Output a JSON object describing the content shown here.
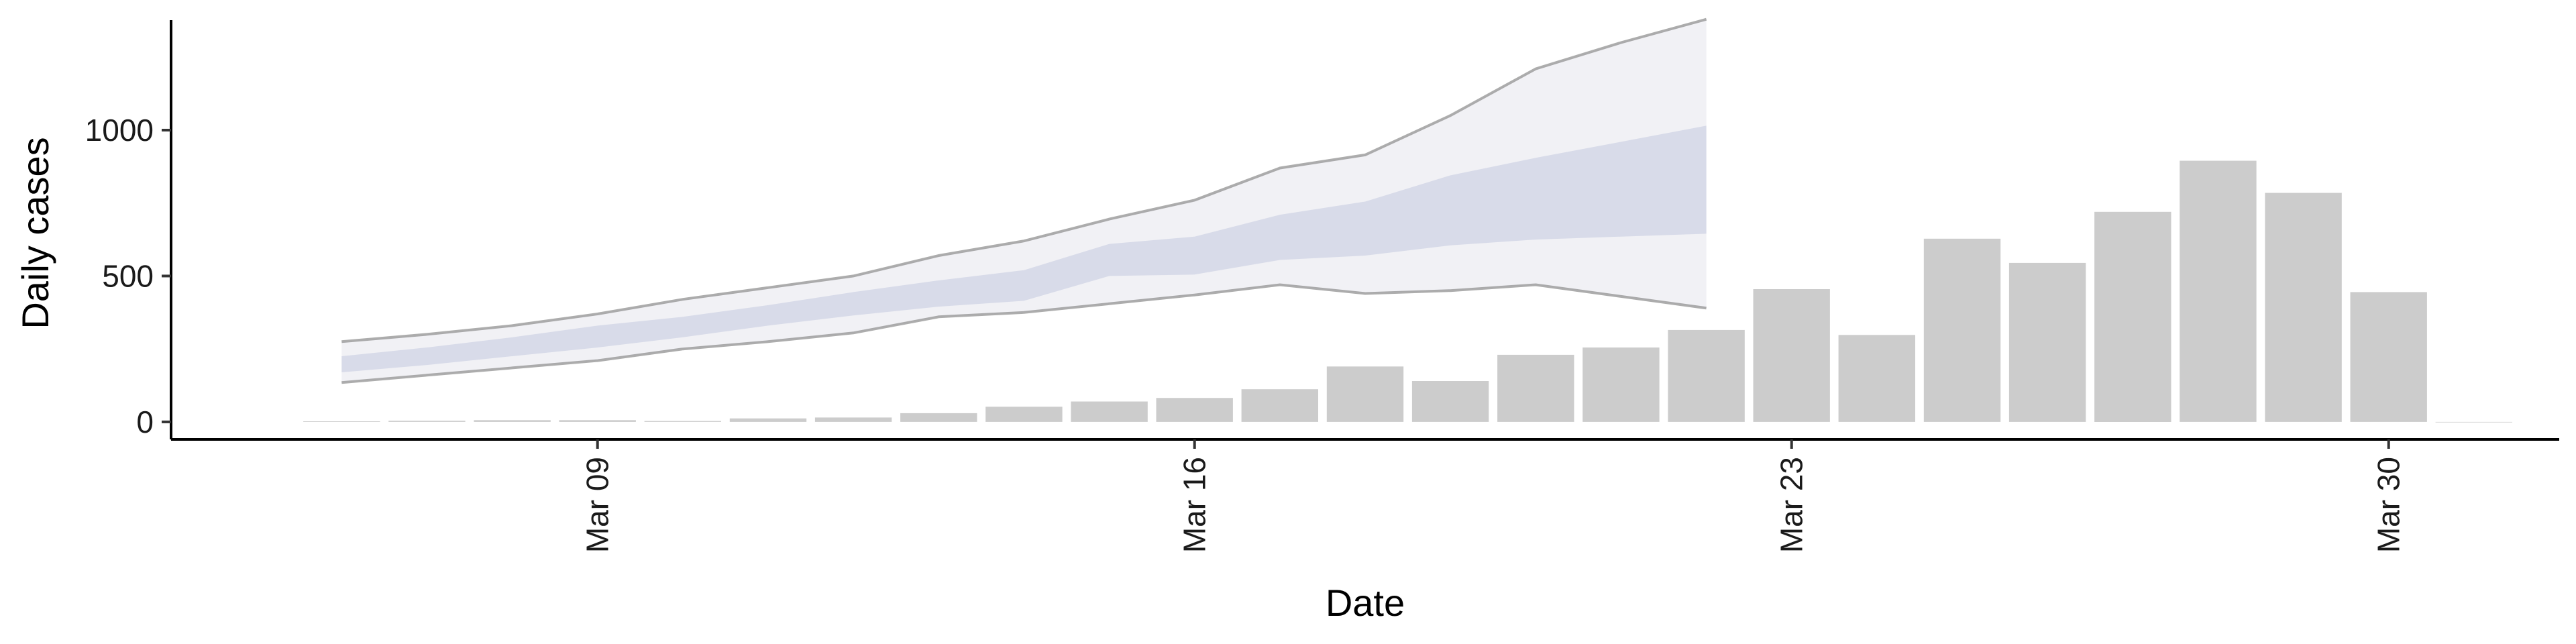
{
  "chart_data": {
    "type": "bar",
    "title": "",
    "xlabel": "Date",
    "ylabel": "Daily cases",
    "x_axis": {
      "type": "date",
      "range": [
        "2020-03-04",
        "2020-04-01"
      ],
      "ticks": [
        "2020-03-09",
        "2020-03-16",
        "2020-03-23",
        "2020-03-30"
      ],
      "tick_labels": [
        "Mar 09",
        "Mar 16",
        "Mar 23",
        "Mar 30"
      ],
      "tick_label_rotation": -90
    },
    "y_axis": {
      "range": [
        -60,
        1400
      ],
      "ticks": [
        0,
        500,
        1000
      ],
      "tick_labels": [
        "0",
        "500",
        "1000"
      ]
    },
    "grid": false,
    "legend": "none",
    "colors": {
      "bars": "#cccccc",
      "outer_band": "#eff0f4",
      "inner_band": "#d2d6e6",
      "band_outline": "#999999"
    },
    "series": [
      {
        "type": "bar",
        "dates": [
          "2020-03-06",
          "2020-03-07",
          "2020-03-08",
          "2020-03-09",
          "2020-03-10",
          "2020-03-11",
          "2020-03-12",
          "2020-03-13",
          "2020-03-14",
          "2020-03-15",
          "2020-03-16",
          "2020-03-17",
          "2020-03-18",
          "2020-03-19",
          "2020-03-20",
          "2020-03-21",
          "2020-03-22",
          "2020-03-23",
          "2020-03-24",
          "2020-03-25",
          "2020-03-26",
          "2020-03-27",
          "2020-03-28",
          "2020-03-29",
          "2020-03-30",
          "2020-03-31"
        ],
        "values": [
          2,
          4,
          6,
          6,
          3,
          12,
          15,
          30,
          52,
          70,
          82,
          112,
          190,
          140,
          230,
          255,
          315,
          455,
          298,
          628,
          545,
          720,
          895,
          785,
          445,
          0
        ]
      },
      {
        "type": "area",
        "role": "outer-interval",
        "dates": [
          "2020-03-06",
          "2020-03-07",
          "2020-03-08",
          "2020-03-09",
          "2020-03-10",
          "2020-03-11",
          "2020-03-12",
          "2020-03-13",
          "2020-03-14",
          "2020-03-15",
          "2020-03-16",
          "2020-03-17",
          "2020-03-18",
          "2020-03-19",
          "2020-03-20",
          "2020-03-21",
          "2020-03-22"
        ],
        "lower": [
          135,
          160,
          185,
          210,
          250,
          275,
          305,
          360,
          375,
          405,
          435,
          470,
          440,
          450,
          470,
          430,
          390
        ],
        "upper": [
          275,
          300,
          330,
          370,
          420,
          460,
          500,
          570,
          620,
          695,
          760,
          870,
          915,
          1050,
          1210,
          1300,
          1380
        ]
      },
      {
        "type": "area",
        "role": "inner-interval",
        "dates": [
          "2020-03-06",
          "2020-03-07",
          "2020-03-08",
          "2020-03-09",
          "2020-03-10",
          "2020-03-11",
          "2020-03-12",
          "2020-03-13",
          "2020-03-14",
          "2020-03-15",
          "2020-03-16",
          "2020-03-17",
          "2020-03-18",
          "2020-03-19",
          "2020-03-20",
          "2020-03-21",
          "2020-03-22"
        ],
        "lower": [
          170,
          195,
          225,
          255,
          290,
          330,
          365,
          395,
          415,
          500,
          505,
          555,
          570,
          605,
          625,
          635,
          645
        ],
        "upper": [
          225,
          255,
          290,
          330,
          360,
          400,
          445,
          485,
          520,
          610,
          635,
          710,
          755,
          845,
          905,
          960,
          1015
        ]
      }
    ]
  }
}
